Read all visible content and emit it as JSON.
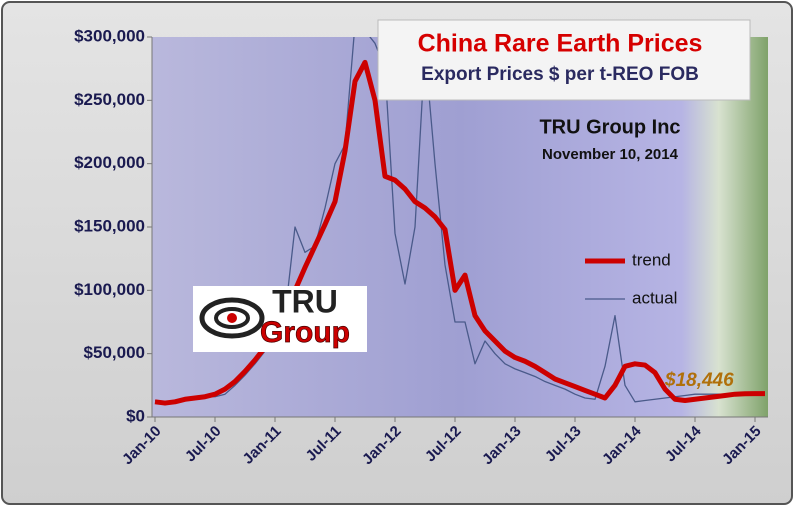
{
  "chart_data": {
    "type": "line",
    "title": "China Rare Earth Prices",
    "subtitle": "Export Prices $ per t-REO FOB",
    "source": "TRU Group Inc",
    "date": "November 10, 2014",
    "logo": [
      "TRU",
      "Group"
    ],
    "annotation": "$18,446",
    "categories": [
      "Jan-10",
      null,
      null,
      null,
      null,
      null,
      "Jul-10",
      null,
      null,
      null,
      null,
      null,
      "Jan-11",
      null,
      null,
      null,
      null,
      null,
      "Jul-11",
      null,
      null,
      null,
      null,
      null,
      "Jan-12",
      null,
      null,
      null,
      null,
      null,
      "Jul-12",
      null,
      null,
      null,
      null,
      null,
      "Jan-13",
      null,
      null,
      null,
      null,
      null,
      "Jul-13",
      null,
      null,
      null,
      null,
      null,
      "Jan-14",
      null,
      null,
      null,
      null,
      null,
      "Jul-14",
      null,
      null,
      null,
      null,
      null,
      "Jan-15",
      null
    ],
    "series": [
      {
        "name": "trend",
        "color": "#cc0000",
        "width": 5,
        "values": [
          12000,
          11000,
          12000,
          14000,
          15000,
          16000,
          18000,
          22000,
          28000,
          36000,
          45000,
          55000,
          68000,
          82000,
          100000,
          118000,
          135000,
          152000,
          170000,
          210000,
          265000,
          280000,
          250000,
          190000,
          187000,
          180000,
          170000,
          165000,
          158000,
          148000,
          100000,
          112000,
          80000,
          68000,
          60000,
          52000,
          47000,
          44000,
          40000,
          35000,
          30000,
          27000,
          24000,
          21000,
          18000,
          15000,
          25000,
          40000,
          42000,
          41000,
          35000,
          22000,
          14000,
          13000,
          14000,
          15000,
          16000,
          17000,
          18000,
          18400,
          18446,
          18446
        ]
      },
      {
        "name": "actual",
        "color": "#4a5a8a",
        "width": 1.3,
        "values": [
          13000,
          12000,
          12000,
          14000,
          15000,
          16000,
          16000,
          18000,
          25000,
          33000,
          42000,
          52000,
          66000,
          80000,
          150000,
          130000,
          135000,
          165000,
          200000,
          215000,
          310000,
          305000,
          295000,
          275000,
          145000,
          105000,
          150000,
          290000,
          200000,
          120000,
          75000,
          75000,
          42000,
          60000,
          50000,
          42000,
          38000,
          35000,
          32000,
          28000,
          25000,
          22000,
          18000,
          15000,
          14000,
          40000,
          80000,
          25000,
          12000,
          13000,
          14000,
          15000,
          16000,
          17000,
          18000,
          18000,
          18000,
          18000,
          18000,
          18000,
          18000,
          18000
        ]
      }
    ],
    "ylim": [
      0,
      300000
    ],
    "yticks": [
      {
        "value": 0,
        "label": "$0"
      },
      {
        "value": 50000,
        "label": "$50,000"
      },
      {
        "value": 100000,
        "label": "$100,000"
      },
      {
        "value": 150000,
        "label": "$150,000"
      },
      {
        "value": 200000,
        "label": "$200,000"
      },
      {
        "value": 250000,
        "label": "$250,000"
      },
      {
        "value": 300000,
        "label": "$300,000"
      }
    ],
    "grid": false
  }
}
